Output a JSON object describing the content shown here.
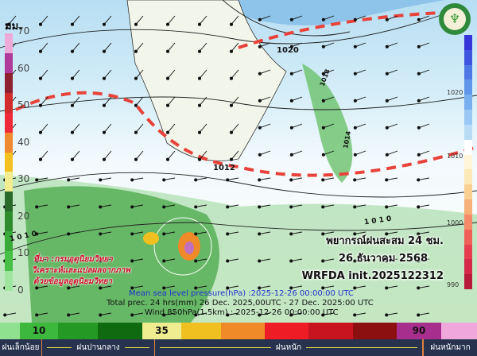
{
  "left_scale": {
    "unit": "มม.",
    "ticks": [
      "70",
      "60",
      "50",
      "40",
      "30",
      "20",
      "10",
      "0"
    ],
    "colors": [
      "#eeaad8",
      "#b03a9a",
      "#8e2030",
      "#d22b2b",
      "#ee2a3a",
      "#f08a30",
      "#f2c020",
      "#f2ee90",
      "#2a6a2a",
      "#2e8c2e",
      "#3aaa3a",
      "#46c046",
      "#9ee69e"
    ]
  },
  "right_scale": {
    "ticks": [
      "1020",
      "1010",
      "1000",
      "990"
    ],
    "colors": [
      "#3434d8",
      "#3f55e0",
      "#4d78e6",
      "#5f96ea",
      "#78b0ef",
      "#98c8f3",
      "#b8dcf6",
      "#ffffff",
      "#fff5d8",
      "#fde8b8",
      "#f9d090",
      "#f7b078",
      "#f48a68",
      "#f06058",
      "#e64050",
      "#d42a48",
      "#b81a3a"
    ]
  },
  "isobar_labels": [
    "1020",
    "1012",
    "1 0 1 0",
    "1018",
    "1014",
    "1 0 1 0"
  ],
  "source": [
    "ที่มา :กรมอุตุนิยมวิทยา",
    "วิเคราะห์และแปลผลจากภาพ",
    "ด้วยข้อมูลอุตุนิยมวิทยา"
  ],
  "forecast": {
    "title": "พยากรณ์ฝนสะสม 24 ชม.",
    "date": "26 ธันวาคม 2568",
    "model": "WRFDA  init.2025122312"
  },
  "map_captions": {
    "mslp": "Mean sea level pressure(hPa) :2025-12-26 00:00:00 UTC",
    "precip": "Total prec. 24 hrs(mm) 26 Dec. 2025,00UTC - 27 Dec.  2025:00  UTC",
    "wind": "Wind 850hPa(1.5km) : 2025-12-26 00:00:00 UTC"
  },
  "legend": {
    "segments": [
      {
        "color": "#8fe08f",
        "label": ""
      },
      {
        "color": "#3cb83c",
        "label": "10"
      },
      {
        "color": "#249a24",
        "label": ""
      },
      {
        "color": "#106a10",
        "label": ""
      },
      {
        "color": "#f0ec90",
        "label": "35"
      },
      {
        "color": "#f0c020",
        "label": ""
      },
      {
        "color": "#f08a28",
        "label": ""
      },
      {
        "color": "#ee1c24",
        "label": ""
      },
      {
        "color": "#c8141e",
        "label": ""
      },
      {
        "color": "#8c1010",
        "label": ""
      },
      {
        "color": "#a82e8e",
        "label": "90"
      },
      {
        "color": "#f0a8dc",
        "label": ""
      }
    ],
    "categories": [
      "ฝนเล็กน้อย",
      "ฝนปานกลาง",
      "ฝนหนัก",
      "ฝนหนักมาก"
    ]
  }
}
